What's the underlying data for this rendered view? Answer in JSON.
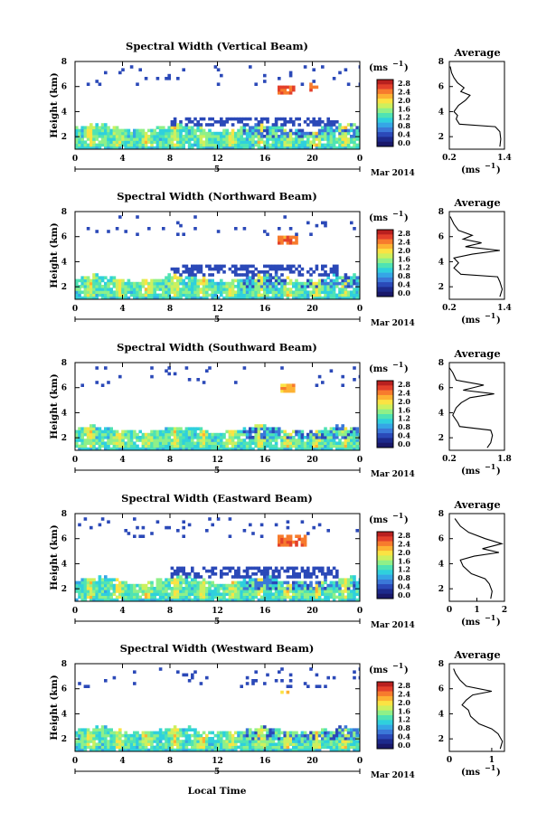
{
  "figure": {
    "x_axis_label": "Local Time",
    "date_label": "Mar 2014",
    "date_marker": "5",
    "unit_label": "(ms",
    "unit_exponent": "−1",
    "avg_title": "Average"
  },
  "colors": {
    "low_band": "#19186a",
    "colorscale": [
      "#1d2a8c",
      "#2b49b8",
      "#3b78d8",
      "#35a6e6",
      "#2fd0dd",
      "#4fe3b4",
      "#8ff088",
      "#cdf05e",
      "#fbe343",
      "#fdb233",
      "#f77b2d",
      "#e3402b",
      "#b9201f"
    ]
  },
  "chart_data": [
    {
      "type": "heatmap",
      "title": "Spectral Width (Vertical Beam)",
      "ylabel": "Height (km)",
      "x_ticks": [
        "0",
        "4",
        "8",
        "12",
        "16",
        "20",
        "0"
      ],
      "y_ticks": [
        "8",
        "6",
        "4",
        "2"
      ],
      "colorbar_ticks": [
        "2.8",
        "2.4",
        "2.0",
        "1.6",
        "1.2",
        "0.8",
        "0.4",
        "0.0"
      ],
      "colorbar_max": 3.0,
      "xlim": [
        0,
        24
      ],
      "ylim": [
        1,
        8
      ],
      "noise_floor_km": [
        2.9,
        3.7
      ],
      "weak_echo_top_km": 7.8,
      "patches": [
        {
          "t": [
            17.0,
            18.4
          ],
          "h": [
            5.6,
            6.3
          ],
          "value": 2.6
        },
        {
          "t": [
            19.6,
            20.4
          ],
          "h": [
            5.7,
            6.4
          ],
          "value": 2.5
        }
      ],
      "average": {
        "xlim": [
          0.2,
          1.4
        ],
        "x_ticks": [
          "0.2",
          "1.4"
        ],
        "y_ticks": [
          "8",
          "6",
          "4",
          "2"
        ],
        "profile": [
          [
            1.3,
            1.2
          ],
          [
            1.32,
            1.8
          ],
          [
            1.3,
            2.4
          ],
          [
            1.2,
            2.8
          ],
          [
            0.42,
            3.0
          ],
          [
            0.35,
            3.4
          ],
          [
            0.38,
            3.7
          ],
          [
            0.3,
            4.0
          ],
          [
            0.4,
            4.5
          ],
          [
            0.55,
            4.9
          ],
          [
            0.65,
            5.3
          ],
          [
            0.45,
            5.6
          ],
          [
            0.52,
            5.9
          ],
          [
            0.38,
            6.3
          ],
          [
            0.3,
            6.7
          ],
          [
            0.25,
            7.1
          ],
          [
            0.22,
            7.6
          ]
        ]
      }
    },
    {
      "type": "heatmap",
      "title": "Spectral Width (Northward Beam)",
      "ylabel": "Height (km)",
      "x_ticks": [
        "0",
        "4",
        "8",
        "12",
        "16",
        "20",
        "0"
      ],
      "y_ticks": [
        "8",
        "6",
        "4",
        "2"
      ],
      "colorbar_ticks": [
        "2.8",
        "2.4",
        "2.0",
        "1.6",
        "1.2",
        "0.8",
        "0.4",
        "0.0"
      ],
      "colorbar_max": 3.0,
      "xlim": [
        0,
        24
      ],
      "ylim": [
        1,
        8
      ],
      "noise_floor_km": [
        2.9,
        3.9
      ],
      "weak_echo_top_km": 7.8,
      "patches": [
        {
          "t": [
            17.0,
            18.6
          ],
          "h": [
            5.5,
            6.3
          ],
          "value": 2.6
        }
      ],
      "average": {
        "xlim": [
          0.2,
          1.4
        ],
        "x_ticks": [
          "0.2",
          "1.4"
        ],
        "y_ticks": [
          "8",
          "6",
          "4",
          "2"
        ],
        "profile": [
          [
            1.3,
            1.2
          ],
          [
            1.35,
            1.8
          ],
          [
            1.3,
            2.4
          ],
          [
            1.25,
            2.8
          ],
          [
            0.45,
            3.0
          ],
          [
            0.3,
            3.5
          ],
          [
            0.4,
            3.9
          ],
          [
            0.3,
            4.3
          ],
          [
            0.7,
            4.6
          ],
          [
            1.3,
            4.9
          ],
          [
            0.55,
            5.2
          ],
          [
            0.9,
            5.5
          ],
          [
            0.5,
            5.8
          ],
          [
            0.7,
            6.1
          ],
          [
            0.4,
            6.5
          ],
          [
            0.3,
            7.0
          ],
          [
            0.22,
            7.6
          ]
        ]
      }
    },
    {
      "type": "heatmap",
      "title": "Spectral Width (Southward Beam)",
      "ylabel": "Height (km)",
      "x_ticks": [
        "0",
        "4",
        "8",
        "12",
        "16",
        "20",
        "0"
      ],
      "y_ticks": [
        "8",
        "6",
        "4",
        "2"
      ],
      "colorbar_ticks": [
        "2.8",
        "2.4",
        "2.0",
        "1.6",
        "1.2",
        "0.8",
        "0.4",
        "0.0"
      ],
      "colorbar_max": 3.0,
      "xlim": [
        0,
        24
      ],
      "ylim": [
        1,
        8
      ],
      "noise_floor_km": null,
      "weak_echo_top_km": 7.8,
      "patches": [
        {
          "t": [
            17.2,
            18.4
          ],
          "h": [
            5.8,
            6.4
          ],
          "value": 2.3
        }
      ],
      "average": {
        "xlim": [
          0.2,
          1.8
        ],
        "x_ticks": [
          "0.2",
          "1.8"
        ],
        "y_ticks": [
          "8",
          "6",
          "4",
          "2"
        ],
        "profile": [
          [
            1.3,
            1.2
          ],
          [
            1.4,
            1.6
          ],
          [
            1.45,
            2.2
          ],
          [
            1.4,
            2.6
          ],
          [
            0.5,
            2.9
          ],
          [
            0.45,
            3.2
          ],
          [
            0.3,
            3.8
          ],
          [
            0.4,
            4.4
          ],
          [
            0.55,
            4.8
          ],
          [
            0.8,
            5.2
          ],
          [
            1.5,
            5.5
          ],
          [
            0.6,
            5.8
          ],
          [
            1.2,
            6.2
          ],
          [
            0.4,
            6.6
          ],
          [
            0.3,
            7.2
          ],
          [
            0.2,
            7.6
          ]
        ]
      }
    },
    {
      "type": "heatmap",
      "title": "Spectral Width (Eastward Beam)",
      "ylabel": "Height (km)",
      "x_ticks": [
        "0",
        "4",
        "8",
        "12",
        "16",
        "20",
        "0"
      ],
      "y_ticks": [
        "8",
        "6",
        "4",
        "2"
      ],
      "colorbar_ticks": [
        "2.8",
        "2.4",
        "2.0",
        "1.6",
        "1.2",
        "0.8",
        "0.4",
        "0.0"
      ],
      "colorbar_max": 3.0,
      "xlim": [
        0,
        24
      ],
      "ylim": [
        1,
        8
      ],
      "noise_floor_km": [
        2.9,
        3.9
      ],
      "weak_echo_top_km": 7.8,
      "patches": [
        {
          "t": [
            17.0,
            19.4
          ],
          "h": [
            5.6,
            6.4
          ],
          "value": 2.6
        }
      ],
      "average": {
        "xlim": [
          0,
          2
        ],
        "x_ticks": [
          "0",
          "1",
          "2"
        ],
        "y_ticks": [
          "8",
          "6",
          "4",
          "2"
        ],
        "profile": [
          [
            1.5,
            1.2
          ],
          [
            1.55,
            1.8
          ],
          [
            1.45,
            2.4
          ],
          [
            1.3,
            2.8
          ],
          [
            0.8,
            3.2
          ],
          [
            0.5,
            3.8
          ],
          [
            0.4,
            4.3
          ],
          [
            0.9,
            4.6
          ],
          [
            1.8,
            4.9
          ],
          [
            1.2,
            5.2
          ],
          [
            1.9,
            5.6
          ],
          [
            1.3,
            6.0
          ],
          [
            0.7,
            6.5
          ],
          [
            0.4,
            7.0
          ],
          [
            0.2,
            7.6
          ]
        ]
      }
    },
    {
      "type": "heatmap",
      "title": "Spectral Width (Westward Beam)",
      "ylabel": "Height (km)",
      "x_ticks": [
        "0",
        "4",
        "8",
        "12",
        "16",
        "20",
        "0"
      ],
      "y_ticks": [
        "8",
        "6",
        "4",
        "2"
      ],
      "colorbar_ticks": [
        "2.8",
        "2.4",
        "2.0",
        "1.6",
        "1.2",
        "0.8",
        "0.4",
        "0.0"
      ],
      "colorbar_max": 3.0,
      "xlim": [
        0,
        24
      ],
      "ylim": [
        1,
        8
      ],
      "noise_floor_km": null,
      "weak_echo_top_km": 7.8,
      "patches": [
        {
          "t": [
            17.2,
            17.8
          ],
          "h": [
            5.7,
            6.0
          ],
          "value": 2.2
        }
      ],
      "average": {
        "xlim": [
          0,
          1.3
        ],
        "x_ticks": [
          "0",
          "1"
        ],
        "y_ticks": [
          "8",
          "6",
          "4",
          "2"
        ],
        "profile": [
          [
            1.2,
            1.2
          ],
          [
            1.25,
            1.8
          ],
          [
            1.15,
            2.4
          ],
          [
            1.0,
            2.8
          ],
          [
            0.7,
            3.2
          ],
          [
            0.5,
            3.8
          ],
          [
            0.45,
            4.3
          ],
          [
            0.3,
            4.7
          ],
          [
            0.4,
            5.1
          ],
          [
            0.55,
            5.5
          ],
          [
            1.0,
            5.8
          ],
          [
            0.4,
            6.2
          ],
          [
            0.25,
            6.7
          ],
          [
            0.15,
            7.2
          ],
          [
            0.1,
            7.6
          ]
        ]
      }
    }
  ]
}
